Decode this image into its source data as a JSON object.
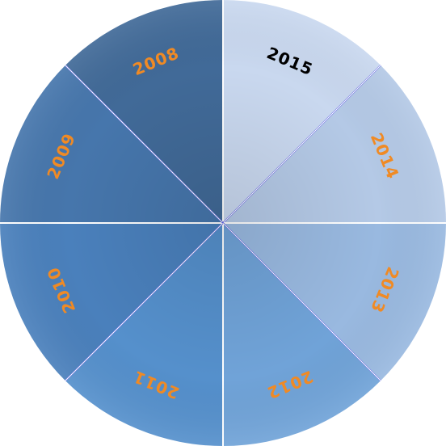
{
  "segments": [
    {
      "label": "2015",
      "fill": "#c9d8ef",
      "text_color": "#000000"
    },
    {
      "label": "2014",
      "fill": "#b4c9e6",
      "text_color": "#f08a24"
    },
    {
      "label": "2013",
      "fill": "#99b9e0",
      "text_color": "#f08a24"
    },
    {
      "label": "2012",
      "fill": "#70a3d8",
      "text_color": "#f08a24"
    },
    {
      "label": "2011",
      "fill": "#5590cc",
      "text_color": "#f08a24"
    },
    {
      "label": "2010",
      "fill": "#4a80bc",
      "text_color": "#f08a24"
    },
    {
      "label": "2009",
      "fill": "#4676ac",
      "text_color": "#f08a24"
    },
    {
      "label": "2008",
      "fill": "#416a98",
      "text_color": "#f08a24"
    }
  ],
  "divider_color": "#ffffff",
  "accent_divider_color": "#5b63e6"
}
